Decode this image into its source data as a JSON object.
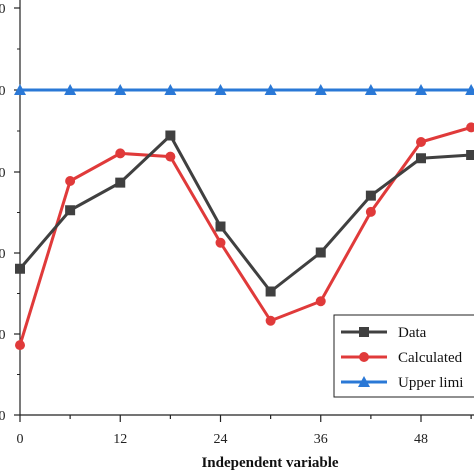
{
  "chart_data": {
    "type": "line",
    "title": "",
    "xlabel": "Independent variable",
    "ylabel": "",
    "xlim": [
      0,
      55
    ],
    "ylim": [
      0,
      100
    ],
    "x_ticks": [
      "0",
      "12",
      "24",
      "36",
      "48"
    ],
    "y_tick_labels": [
      "0",
      "0",
      "0",
      "0",
      "0",
      "0"
    ],
    "grid": false,
    "legend_position": "bottom-right",
    "series": [
      {
        "name": "Data",
        "color": "#404040",
        "marker": "square",
        "x": [
          0,
          6,
          12,
          18,
          24,
          30,
          36,
          42,
          48,
          54
        ],
        "y": [
          45,
          63,
          71.5,
          86,
          58,
          38,
          50,
          67.5,
          79,
          80
        ]
      },
      {
        "name": "Calculated",
        "color": "#e03a3a",
        "marker": "circle",
        "x": [
          0,
          6,
          12,
          18,
          24,
          30,
          36,
          42,
          48,
          54
        ],
        "y": [
          21.5,
          72,
          80.5,
          79.5,
          53,
          29,
          35,
          62.5,
          84,
          88.5
        ]
      },
      {
        "name": "Upper limi",
        "color": "#2a78d6",
        "marker": "triangle",
        "x": [
          0,
          6,
          12,
          18,
          24,
          30,
          36,
          42,
          48,
          54
        ],
        "y": [
          100,
          100,
          100,
          100,
          100,
          100,
          100,
          100,
          100,
          100
        ]
      }
    ]
  }
}
